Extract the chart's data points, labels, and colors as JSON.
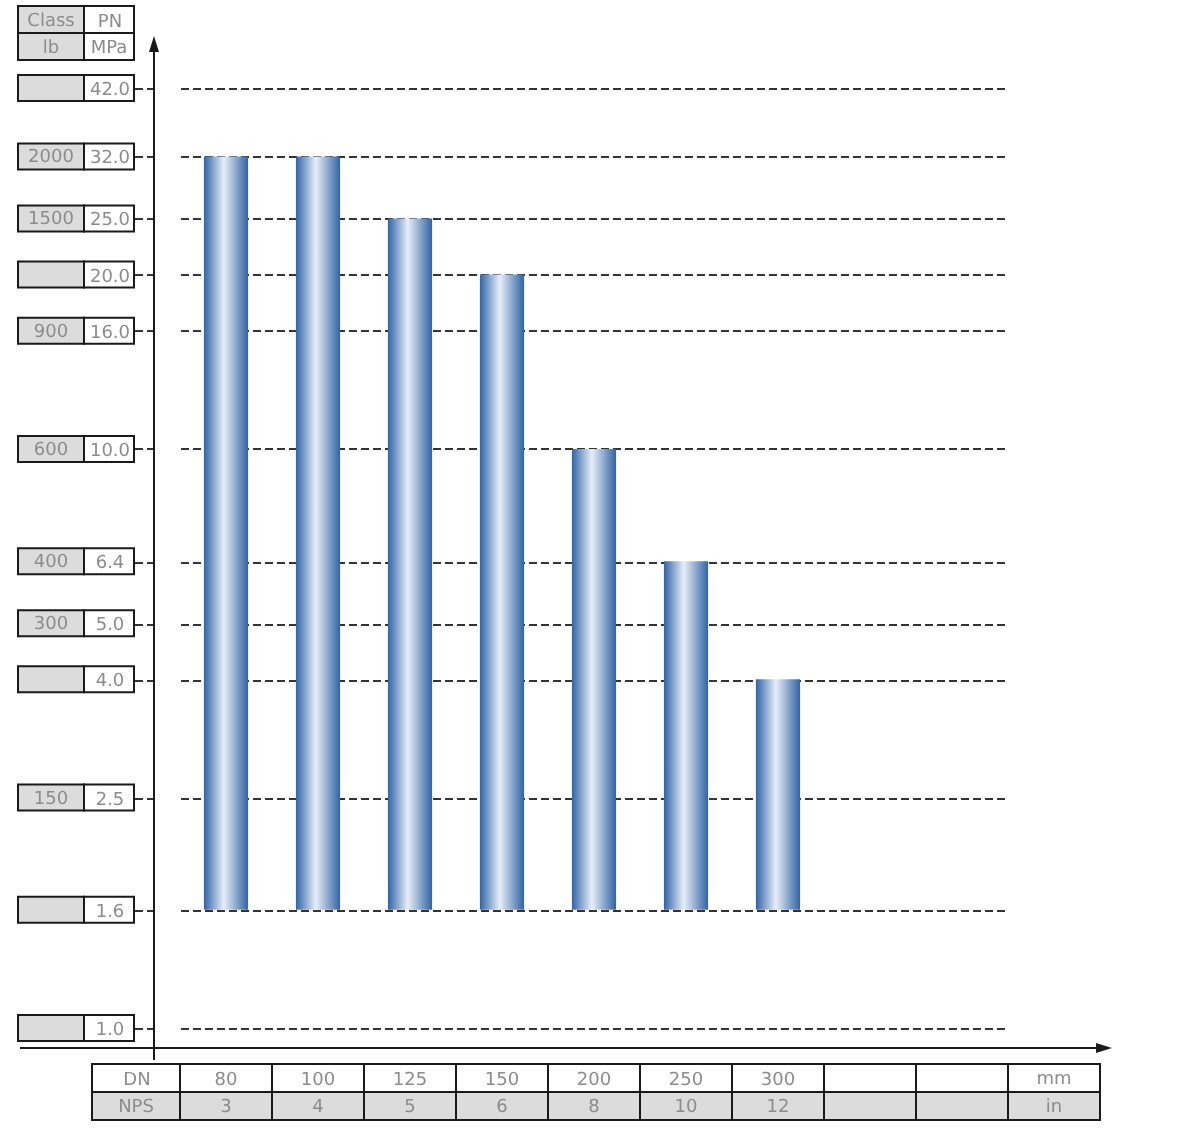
{
  "chart_data": {
    "type": "bar",
    "categories": [
      "80",
      "100",
      "125",
      "150",
      "200",
      "250",
      "300",
      null,
      null
    ],
    "values": [
      30.4,
      30.4,
      23.4,
      18.4,
      8.4,
      4.8,
      2.4,
      null,
      null
    ],
    "base": [
      1.6,
      1.6,
      1.6,
      1.6,
      1.6,
      1.6,
      1.6,
      null,
      null
    ],
    "color": "#2f64a6",
    "xlabel": "DN",
    "ylabel": "PN",
    "y2label": "Class",
    "ylim": [
      1,
      42
    ],
    "yticks": [
      {
        "value": 1,
        "label": "1.0"
      },
      1.6,
      2.5,
      {
        "value": 4,
        "label": "4.0"
      },
      {
        "value": 5,
        "label": "5.0"
      },
      6.4,
      {
        "value": 10,
        "label": "10.0"
      },
      {
        "value": 16,
        "label": "16.0"
      },
      {
        "value": 20,
        "label": "20.0"
      },
      {
        "value": 25,
        "label": "25.0"
      },
      {
        "value": 32,
        "label": "32.0"
      },
      {
        "value": 42,
        "label": "42.0"
      }
    ],
    "y2_categories": [
      null,
      "2000",
      "1500",
      null,
      "900",
      "600",
      "400",
      "300",
      null,
      "150",
      null,
      null
    ],
    "log": true,
    "grid": "y",
    "annotations": [
      "lb",
      "MPa",
      "NPS",
      "mm",
      "in",
      "3",
      "4",
      "5",
      "6",
      "8",
      "10",
      "12"
    ]
  }
}
